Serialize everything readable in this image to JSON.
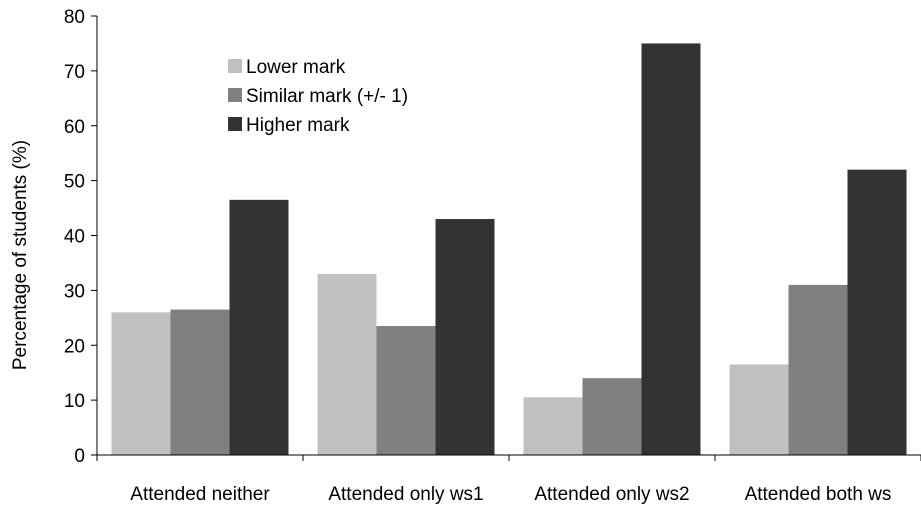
{
  "chart_data": {
    "type": "bar",
    "title": "",
    "xlabel": "",
    "ylabel": "Percentage of students (%)",
    "ylim": [
      0,
      80
    ],
    "yticks": [
      "0",
      "10",
      "20",
      "30",
      "40",
      "50",
      "60",
      "70",
      "80"
    ],
    "grid": false,
    "legend_position": "top-left",
    "categories": [
      "Attended neither",
      "Attended only ws1",
      "Attended only ws2",
      "Attended both ws"
    ],
    "series": [
      {
        "name": "Lower mark",
        "color": "#c0c0c0",
        "values": [
          26,
          33,
          10.5,
          16.5
        ]
      },
      {
        "name": "Similar mark (+/- 1)",
        "color": "#808080",
        "values": [
          26.5,
          23.5,
          14,
          31
        ]
      },
      {
        "name": "Higher mark",
        "color": "#333333",
        "values": [
          46.5,
          43,
          75,
          52
        ]
      }
    ]
  }
}
